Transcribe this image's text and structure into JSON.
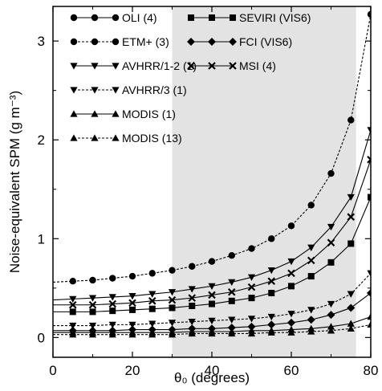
{
  "chart_data": {
    "type": "line",
    "xlabel": "θ₀ (degrees)",
    "ylabel": "Noise-equivalent SPM (g m⁻³)",
    "xlim": [
      0,
      80
    ],
    "ylim": [
      -0.2,
      3.35
    ],
    "xticks": [
      0,
      20,
      40,
      60,
      80
    ],
    "yticks": [
      0,
      1,
      2,
      3
    ],
    "shaded_region": {
      "x": [
        30,
        76.3
      ],
      "color": "#e3e3e3"
    },
    "x": [
      5,
      10,
      15,
      20,
      25,
      30,
      35,
      40,
      45,
      50,
      55,
      60,
      65,
      70,
      75,
      80
    ],
    "series": [
      {
        "name": "OLI (4)",
        "marker": "circle",
        "dash": "solid",
        "values": [
          0.0,
          0.0,
          0.0,
          0.0,
          0.0,
          0.0,
          0.0,
          0.0,
          0.0,
          0.0,
          0.0,
          0.0,
          0.0,
          0.0,
          0.0,
          0.0
        ],
        "draw_line": false
      },
      {
        "name": "ETM+ (3)",
        "marker": "circle",
        "dash": "dashed",
        "values": [
          0.57,
          0.58,
          0.6,
          0.62,
          0.65,
          0.68,
          0.72,
          0.77,
          0.83,
          0.9,
          1.0,
          1.13,
          1.34,
          1.66,
          2.2,
          3.27
        ]
      },
      {
        "name": "AVHRR/1-2 (1)",
        "marker": "triangle-down",
        "dash": "solid",
        "values": [
          0.39,
          0.4,
          0.41,
          0.42,
          0.44,
          0.46,
          0.49,
          0.52,
          0.56,
          0.61,
          0.68,
          0.77,
          0.91,
          1.12,
          1.42,
          2.1
        ]
      },
      {
        "name": "AVHRR/3 (1)",
        "marker": "triangle-down",
        "dash": "dashed",
        "values": [
          0.12,
          0.12,
          0.13,
          0.13,
          0.14,
          0.15,
          0.16,
          0.17,
          0.18,
          0.19,
          0.21,
          0.24,
          0.28,
          0.34,
          0.44,
          0.65
        ]
      },
      {
        "name": "MODIS (1)",
        "marker": "triangle-up",
        "dash": "solid",
        "values": [
          0.05,
          0.05,
          0.05,
          0.05,
          0.05,
          0.05,
          0.06,
          0.06,
          0.06,
          0.07,
          0.07,
          0.08,
          0.09,
          0.11,
          0.14,
          0.21
        ]
      },
      {
        "name": "MODIS (13)",
        "marker": "triangle-up",
        "dash": "dashed",
        "values": [
          0.03,
          0.03,
          0.03,
          0.03,
          0.03,
          0.03,
          0.04,
          0.04,
          0.04,
          0.04,
          0.05,
          0.05,
          0.06,
          0.07,
          0.09,
          0.13
        ]
      },
      {
        "name": "SEVIRI (VIS6)",
        "marker": "square",
        "dash": "solid",
        "values": [
          0.26,
          0.26,
          0.27,
          0.28,
          0.29,
          0.3,
          0.32,
          0.34,
          0.37,
          0.4,
          0.45,
          0.52,
          0.62,
          0.76,
          0.95,
          1.42
        ]
      },
      {
        "name": "FCI (VIS6)",
        "marker": "diamond",
        "dash": "solid",
        "values": [
          0.07,
          0.07,
          0.07,
          0.08,
          0.08,
          0.08,
          0.09,
          0.09,
          0.1,
          0.11,
          0.13,
          0.15,
          0.18,
          0.23,
          0.3,
          0.45
        ]
      },
      {
        "name": "MSI (4)",
        "marker": "x",
        "dash": "solid",
        "values": [
          0.33,
          0.33,
          0.34,
          0.35,
          0.37,
          0.38,
          0.4,
          0.43,
          0.46,
          0.51,
          0.57,
          0.65,
          0.78,
          0.96,
          1.22,
          1.8
        ]
      }
    ],
    "legend": {
      "placement": "top",
      "columns": 2
    }
  }
}
